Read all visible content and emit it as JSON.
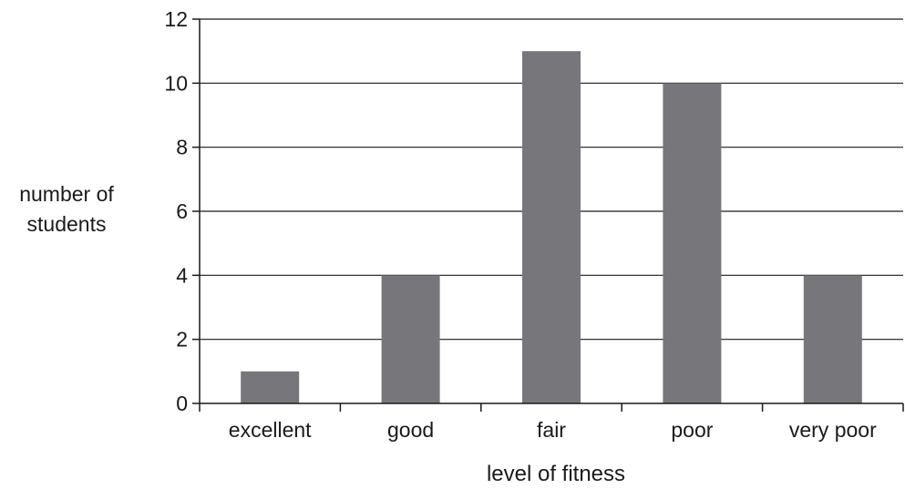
{
  "chart_data": {
    "type": "bar",
    "title": "",
    "xlabel": "level of fitness",
    "ylabel_lines": [
      "number of",
      "students"
    ],
    "categories": [
      "excellent",
      "good",
      "fair",
      "poor",
      "very poor"
    ],
    "values": [
      1,
      4,
      11,
      10,
      4
    ],
    "ylim": [
      0,
      12
    ],
    "yticks": [
      0,
      2,
      4,
      6,
      8,
      10,
      12
    ],
    "grid": true,
    "legend": "none",
    "bar_color": "#77777b",
    "axis_color": "#1a1a1a"
  }
}
